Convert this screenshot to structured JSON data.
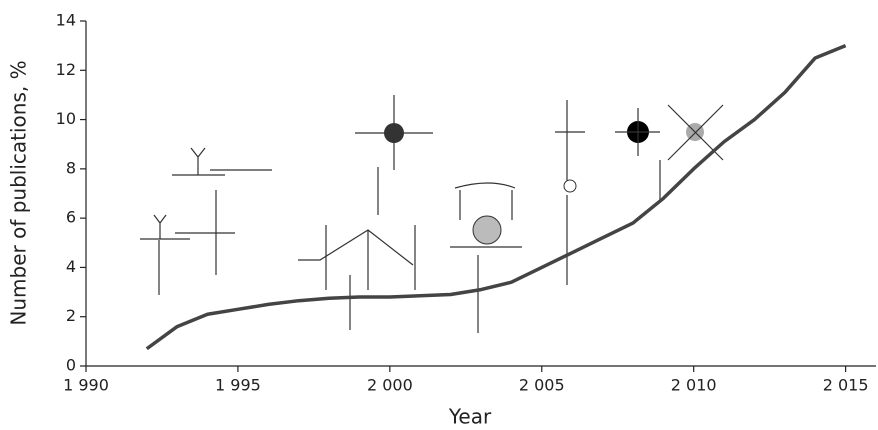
{
  "chart_data": {
    "type": "line",
    "x_label": "Year",
    "y_label": "Number of publications, %",
    "x": [
      1992,
      1993,
      1994,
      1995,
      1996,
      1997,
      1998,
      1999,
      2000,
      2001,
      2002,
      2003,
      2004,
      2005,
      2006,
      2007,
      2008,
      2009,
      2010,
      2011,
      2012,
      2013,
      2014,
      2015
    ],
    "values": [
      0.7,
      1.6,
      2.1,
      2.3,
      2.5,
      2.65,
      2.75,
      2.8,
      2.8,
      2.85,
      2.9,
      3.1,
      3.4,
      4.0,
      4.6,
      5.2,
      5.8,
      6.8,
      8.0,
      9.1,
      10.0,
      11.1,
      12.5,
      13.0
    ],
    "color": "#444444",
    "xlim": [
      1990,
      2016
    ],
    "xticks": [
      {
        "value": 1990,
        "label": "1 990"
      },
      {
        "value": 1995,
        "label": "1 995"
      },
      {
        "value": 2000,
        "label": "2 000"
      },
      {
        "value": 2005,
        "label": "2 005"
      },
      {
        "value": 2010,
        "label": "2 010"
      },
      {
        "value": 2015,
        "label": "2 015"
      }
    ],
    "ylim": [
      0,
      14
    ],
    "yticks": [
      0,
      2,
      4,
      6,
      8,
      10,
      12,
      14
    ],
    "grid": false
  }
}
